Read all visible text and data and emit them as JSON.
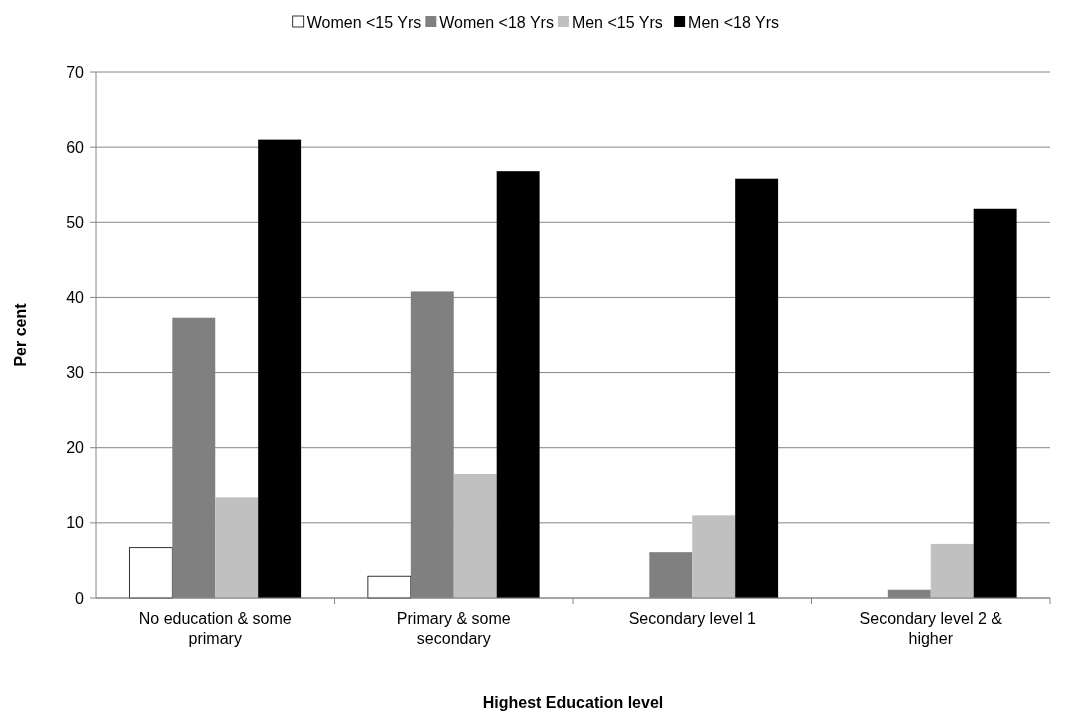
{
  "chart_data": {
    "type": "bar",
    "xlabel": "Highest Education level",
    "ylabel": "Per cent",
    "categories": [
      "No education & some primary",
      "Primary & some secondary",
      "Secondary level 1",
      "Secondary level 2 & higher"
    ],
    "series": [
      {
        "name": "Women <15 Yrs",
        "color": "#ffffff",
        "values": [
          6.7,
          2.9,
          0,
          0
        ]
      },
      {
        "name": "Women <18 Yrs",
        "color": "#808080",
        "values": [
          37.3,
          40.8,
          6.1,
          1.1
        ]
      },
      {
        "name": "Men <15 Yrs",
        "color": "#c0c0c0",
        "values": [
          13.4,
          16.5,
          11,
          7.2
        ]
      },
      {
        "name": "Men <18 Yrs",
        "color": "#000000",
        "values": [
          61,
          56.8,
          55.8,
          51.8
        ]
      }
    ],
    "ylim": [
      0,
      70
    ],
    "yticks": [
      0,
      10,
      20,
      30,
      40,
      50,
      60,
      70
    ],
    "grid": "y",
    "legend": "top"
  }
}
